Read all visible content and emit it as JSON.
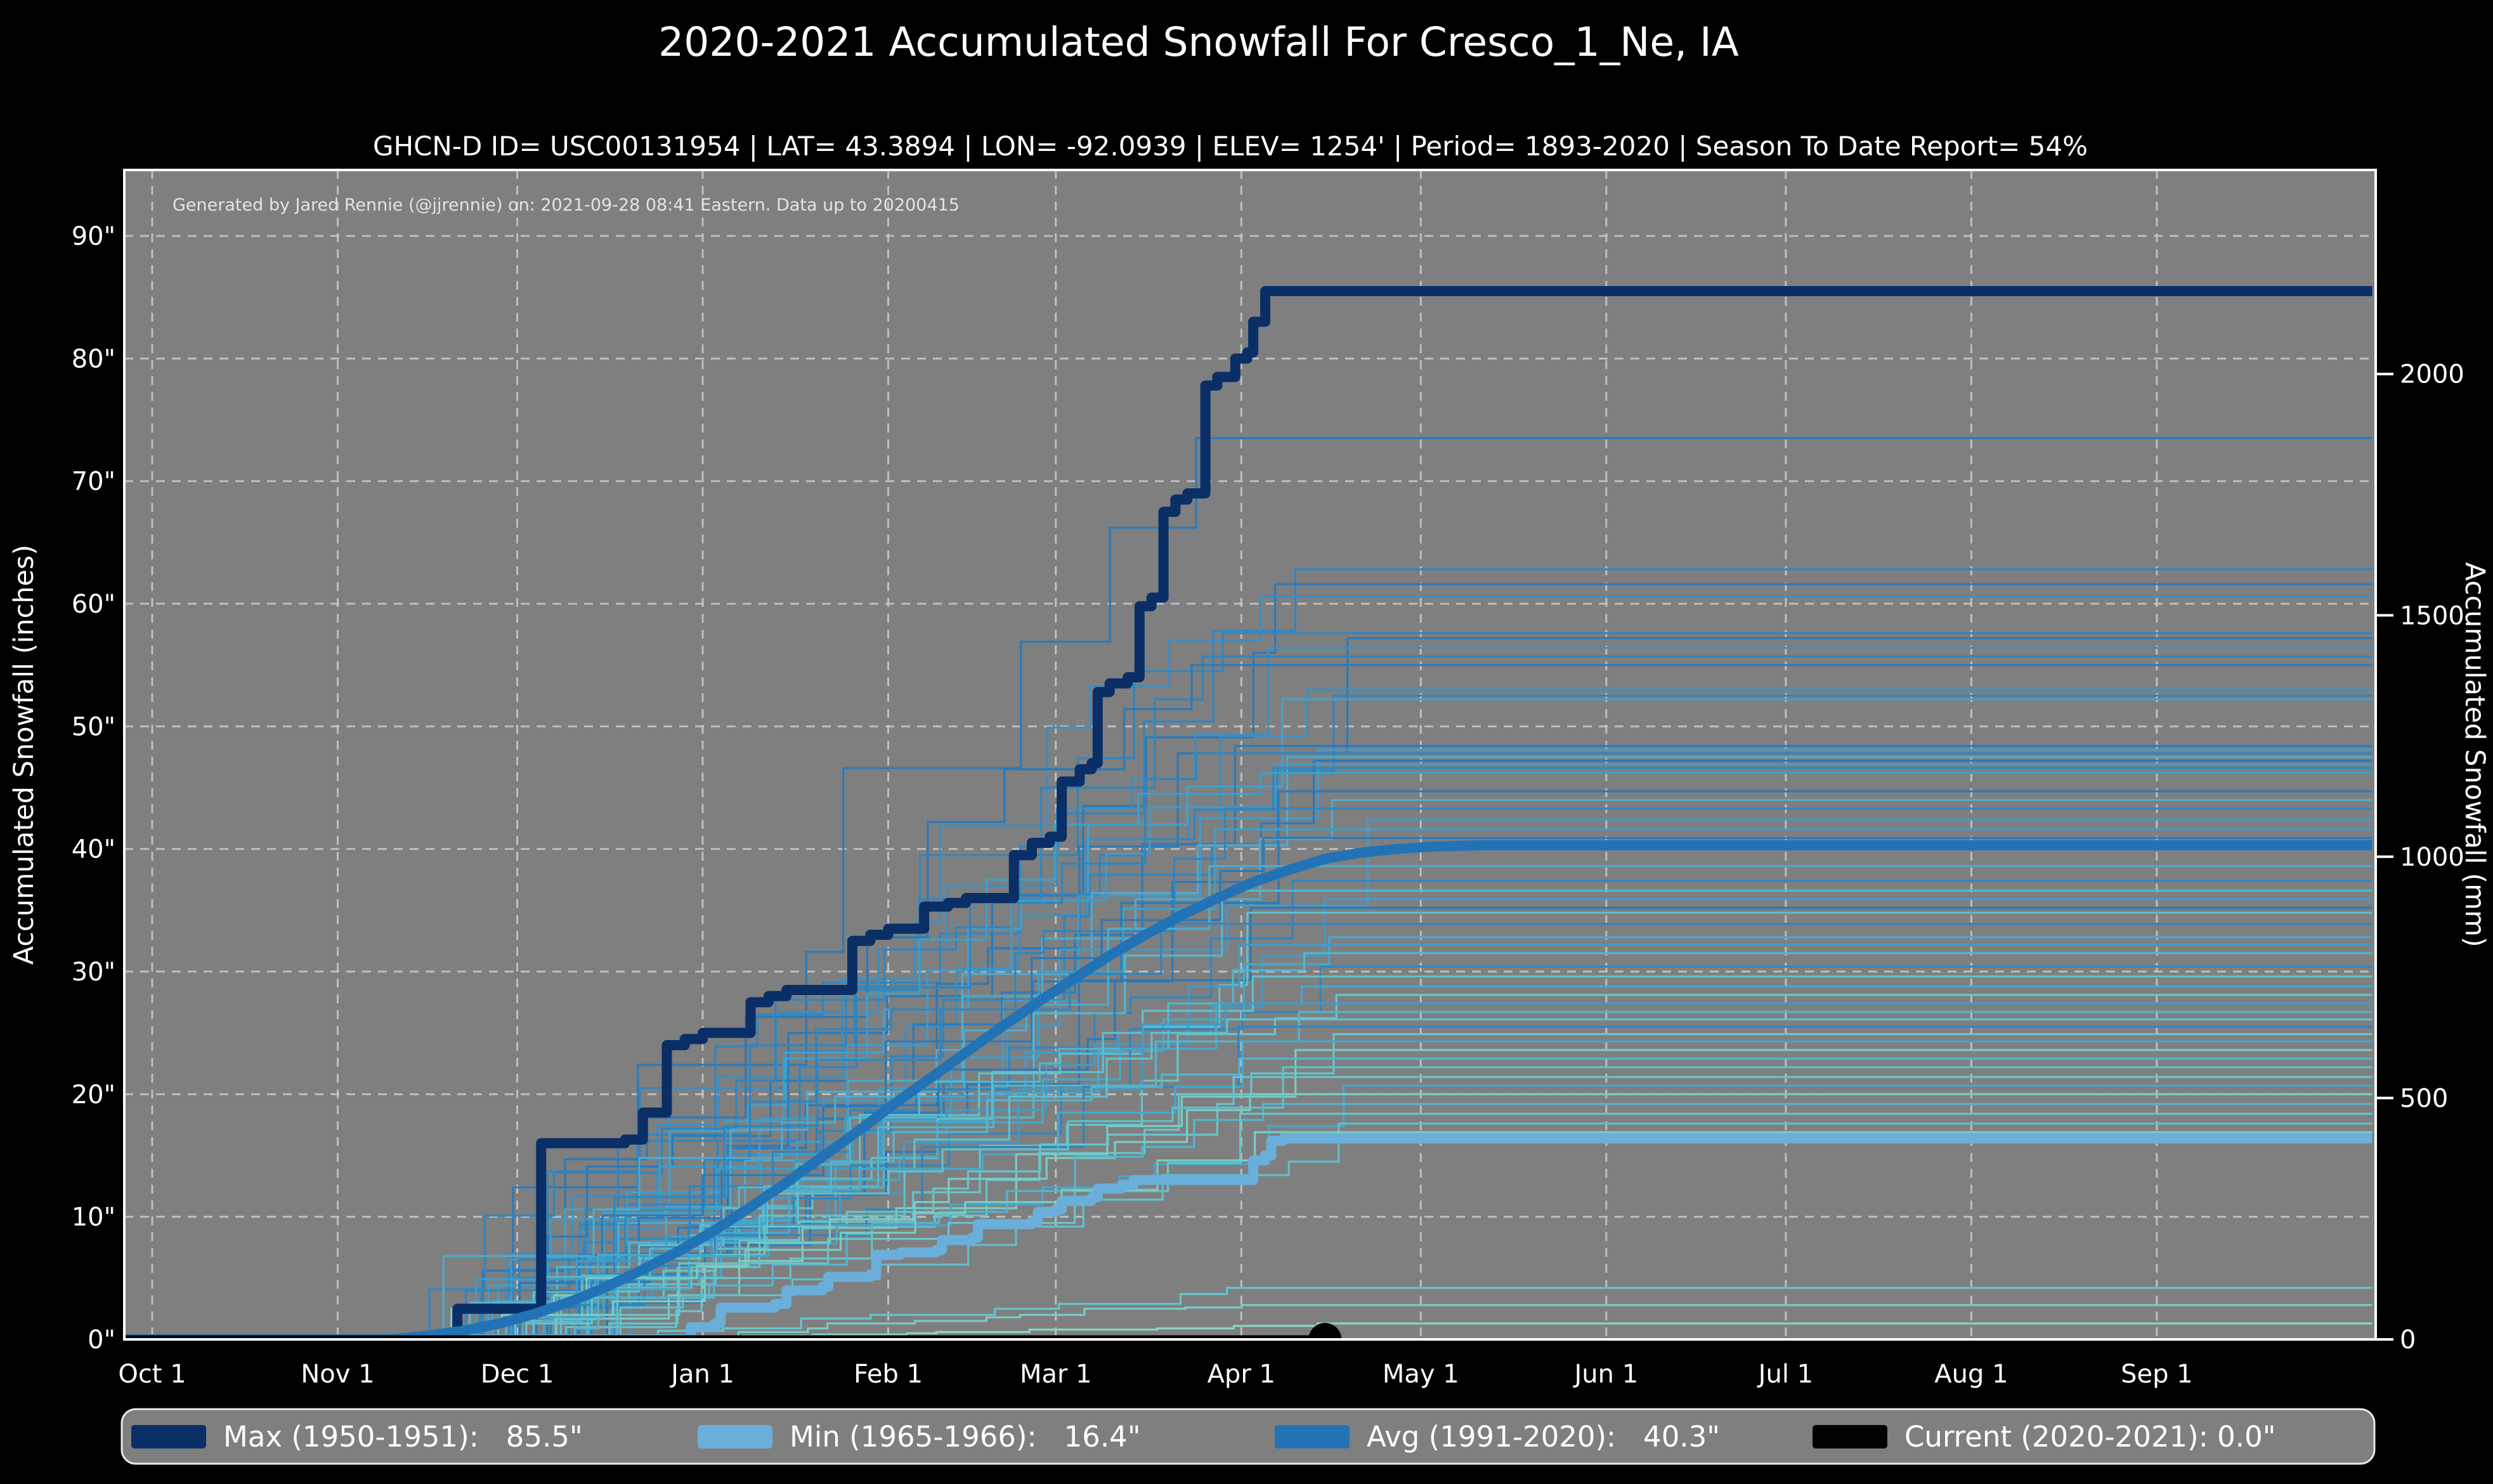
{
  "page": {
    "background": "#000000",
    "plot_background": "#7f7f7f",
    "text_color": "#ffffff"
  },
  "header": {
    "title": "2020-2021 Accumulated Snowfall For Cresco_1_Ne, IA",
    "subtitle": "GHCN-D ID= USC00131954 | LAT= 43.3894 | LON= -92.0939 | ELEV= 1254' | Period= 1893-2020 | Season To Date Report= 54%"
  },
  "annotation": "Generated by Jared Rennie (@jjrennie) on: 2021-09-28 08:41 Eastern. Data up to 20200415",
  "chart_data": {
    "type": "line",
    "title": "2020-2021 Accumulated Snowfall For Cresco_1_Ne, IA",
    "xlabel": "",
    "ylabel_left": "Accumulated Snowfall (inches)",
    "ylabel_right": "Accumulated Snowfall (mm)",
    "x_domain_days": [
      -5,
      371
    ],
    "y_left": {
      "ticks": [
        0,
        10,
        20,
        30,
        40,
        50,
        60,
        70,
        80,
        90
      ],
      "suffix": "\"",
      "max": 95
    },
    "y_right": {
      "ticks": [
        0,
        500,
        1000,
        1500,
        2000
      ],
      "mm_per_inch": 25.4
    },
    "x_ticks": [
      {
        "label": "Oct 1",
        "day": 0
      },
      {
        "label": "Nov 1",
        "day": 31
      },
      {
        "label": "Dec 1",
        "day": 61
      },
      {
        "label": "Jan 1",
        "day": 92
      },
      {
        "label": "Feb 1",
        "day": 123
      },
      {
        "label": "Mar 1",
        "day": 151
      },
      {
        "label": "Apr 1",
        "day": 182
      },
      {
        "label": "May 1",
        "day": 212
      },
      {
        "label": "Jun 1",
        "day": 243
      },
      {
        "label": "Jul 1",
        "day": 273
      },
      {
        "label": "Aug 1",
        "day": 304
      },
      {
        "label": "Sep 1",
        "day": 335
      }
    ],
    "grid": {
      "color": "#c9c9c9",
      "dash": "14 11"
    },
    "series": [
      {
        "name": "Max (1950-1951):   85.5\"",
        "color": "#0a2f66",
        "width": 16,
        "step": true,
        "points": [
          [
            -5,
            0
          ],
          [
            50,
            0
          ],
          [
            51,
            2.5
          ],
          [
            64,
            2.5
          ],
          [
            65,
            16.0
          ],
          [
            79,
            16.3
          ],
          [
            82,
            18.5
          ],
          [
            86,
            24.0
          ],
          [
            89,
            24.5
          ],
          [
            92,
            25.0
          ],
          [
            100,
            27.5
          ],
          [
            103,
            28.0
          ],
          [
            106,
            28.5
          ],
          [
            117,
            32.5
          ],
          [
            120,
            33.0
          ],
          [
            123,
            33.5
          ],
          [
            129,
            35.3
          ],
          [
            133,
            35.6
          ],
          [
            136,
            36.0
          ],
          [
            144,
            39.5
          ],
          [
            147,
            40.5
          ],
          [
            150,
            41.0
          ],
          [
            152,
            45.5
          ],
          [
            155,
            46.5
          ],
          [
            157,
            47.0
          ],
          [
            158,
            52.8
          ],
          [
            160,
            53.5
          ],
          [
            163,
            54.0
          ],
          [
            165,
            59.8
          ],
          [
            167,
            60.5
          ],
          [
            169,
            67.5
          ],
          [
            171,
            68.5
          ],
          [
            173,
            69.0
          ],
          [
            176,
            77.8
          ],
          [
            178,
            78.5
          ],
          [
            181,
            80.0
          ],
          [
            183,
            80.5
          ],
          [
            184,
            83.0
          ],
          [
            186,
            85.5
          ],
          [
            371,
            85.5
          ]
        ]
      },
      {
        "name": "Min (1965-1966):   16.4\"",
        "color": "#6aaeda",
        "width": 16,
        "step": true,
        "points": [
          [
            -5,
            0
          ],
          [
            88,
            0
          ],
          [
            90,
            1.0
          ],
          [
            94,
            1.3
          ],
          [
            95,
            2.6
          ],
          [
            104,
            2.9
          ],
          [
            106,
            4.0
          ],
          [
            112,
            4.3
          ],
          [
            113,
            5.1
          ],
          [
            120,
            5.3
          ],
          [
            121,
            6.9
          ],
          [
            125,
            7.1
          ],
          [
            131,
            7.3
          ],
          [
            132,
            8.1
          ],
          [
            137,
            8.3
          ],
          [
            138,
            9.4
          ],
          [
            147,
            9.6
          ],
          [
            148,
            10.4
          ],
          [
            151,
            10.6
          ],
          [
            152,
            11.3
          ],
          [
            157,
            11.6
          ],
          [
            158,
            12.3
          ],
          [
            162,
            12.6
          ],
          [
            164,
            13.0
          ],
          [
            182,
            13.0
          ],
          [
            184,
            14.6
          ],
          [
            186,
            15.0
          ],
          [
            187,
            16.2
          ],
          [
            189,
            16.4
          ],
          [
            371,
            16.4
          ]
        ]
      },
      {
        "name": "Avg (1991-2020):   40.3\"",
        "color": "#2273b5",
        "width": 16,
        "step": false,
        "points": [
          [
            -5,
            0
          ],
          [
            40,
            0
          ],
          [
            46,
            0.3
          ],
          [
            52,
            0.7
          ],
          [
            58,
            1.3
          ],
          [
            64,
            2.1
          ],
          [
            70,
            3.1
          ],
          [
            76,
            4.3
          ],
          [
            82,
            5.7
          ],
          [
            88,
            7.2
          ],
          [
            94,
            8.9
          ],
          [
            100,
            10.8
          ],
          [
            106,
            12.8
          ],
          [
            112,
            14.9
          ],
          [
            118,
            17.0
          ],
          [
            124,
            19.2
          ],
          [
            130,
            21.3
          ],
          [
            136,
            23.4
          ],
          [
            142,
            25.5
          ],
          [
            148,
            27.5
          ],
          [
            154,
            29.4
          ],
          [
            160,
            31.3
          ],
          [
            166,
            33.0
          ],
          [
            172,
            34.6
          ],
          [
            178,
            36.0
          ],
          [
            184,
            37.3
          ],
          [
            190,
            38.3
          ],
          [
            196,
            39.2
          ],
          [
            202,
            39.7
          ],
          [
            208,
            40.0
          ],
          [
            214,
            40.2
          ],
          [
            222,
            40.3
          ],
          [
            371,
            40.3
          ]
        ]
      },
      {
        "name": "Current (2020-2021): 0.0\"",
        "color": "#000000",
        "width": 13,
        "step": false,
        "points": [
          [
            -5,
            0
          ],
          [
            196,
            0
          ]
        ],
        "end_marker": {
          "day": 196,
          "value": 0,
          "radius": 26
        }
      }
    ],
    "legend": {
      "items": [
        {
          "label": "Max (1950-1951):   85.5\"",
          "color": "#0a2f66"
        },
        {
          "label": "Min (1965-1966):   16.4\"",
          "color": "#6aaeda"
        },
        {
          "label": "Avg (1991-2020):   40.3\"",
          "color": "#2273b5"
        },
        {
          "label": "Current (2020-2021): 0.0\"",
          "color": "#000000"
        }
      ]
    },
    "background_series": [
      {
        "final": 73.5,
        "color": "#2b7ab9",
        "start": 58,
        "flat": 185,
        "seed": 1
      },
      {
        "final": 62.8,
        "color": "#2f86c0",
        "start": 50,
        "flat": 196,
        "seed": 2
      },
      {
        "final": 61.6,
        "color": "#2b7ab9",
        "start": 62,
        "flat": 200,
        "seed": 3
      },
      {
        "final": 60.6,
        "color": "#3a8fc5",
        "start": 55,
        "flat": 192,
        "seed": 4
      },
      {
        "final": 57.6,
        "color": "#2f86c0",
        "start": 48,
        "flat": 188,
        "seed": 5
      },
      {
        "final": 57.2,
        "color": "#2b7ab9",
        "start": 66,
        "flat": 203,
        "seed": 6
      },
      {
        "final": 56.4,
        "color": "#3a8fc5",
        "start": 52,
        "flat": 197,
        "seed": 7
      },
      {
        "final": 55.7,
        "color": "#2f86c0",
        "start": 60,
        "flat": 190,
        "seed": 8
      },
      {
        "final": 55.0,
        "color": "#2b7ab9",
        "start": 45,
        "flat": 186,
        "seed": 9
      },
      {
        "final": 53.0,
        "color": "#3a8fc5",
        "start": 57,
        "flat": 199,
        "seed": 10
      },
      {
        "final": 52.5,
        "color": "#2f86c0",
        "start": 63,
        "flat": 207,
        "seed": 11
      },
      {
        "final": 52.2,
        "color": "#45a0ca",
        "start": 49,
        "flat": 193,
        "seed": 12
      },
      {
        "final": 48.4,
        "color": "#2b7ab9",
        "start": 54,
        "flat": 189,
        "seed": 13
      },
      {
        "final": 48.1,
        "color": "#419bc9",
        "start": 68,
        "flat": 202,
        "seed": 14
      },
      {
        "final": 47.8,
        "color": "#2f86c0",
        "start": 42,
        "flat": 184,
        "seed": 15
      },
      {
        "final": 47.5,
        "color": "#4dabce",
        "start": 59,
        "flat": 195,
        "seed": 16
      },
      {
        "final": 47.2,
        "color": "#2b7ab9",
        "start": 65,
        "flat": 205,
        "seed": 17
      },
      {
        "final": 46.9,
        "color": "#419bc9",
        "start": 51,
        "flat": 191,
        "seed": 18
      },
      {
        "final": 46.6,
        "color": "#2f86c0",
        "start": 61,
        "flat": 198,
        "seed": 19
      },
      {
        "final": 46.2,
        "color": "#38a2cb",
        "start": 47,
        "flat": 187,
        "seed": 20
      },
      {
        "final": 44.7,
        "color": "#2b7ab9",
        "start": 56,
        "flat": 194,
        "seed": 21
      },
      {
        "final": 44.0,
        "color": "#4dabce",
        "start": 64,
        "flat": 201,
        "seed": 22
      },
      {
        "final": 43.3,
        "color": "#2f86c0",
        "start": 44,
        "flat": 185,
        "seed": 23
      },
      {
        "final": 42.4,
        "color": "#419bc9",
        "start": 67,
        "flat": 206,
        "seed": 24
      },
      {
        "final": 41.6,
        "color": "#38a2cb",
        "start": 53,
        "flat": 190,
        "seed": 25
      },
      {
        "final": 40.9,
        "color": "#2b7ab9",
        "start": 58,
        "flat": 196,
        "seed": 26
      },
      {
        "final": 38.6,
        "color": "#4dabce",
        "start": 46,
        "flat": 183,
        "seed": 27
      },
      {
        "final": 37.4,
        "color": "#2f86c0",
        "start": 62,
        "flat": 199,
        "seed": 28
      },
      {
        "final": 36.6,
        "color": "#52b6cf",
        "start": 50,
        "flat": 192,
        "seed": 29
      },
      {
        "final": 35.9,
        "color": "#419bc9",
        "start": 69,
        "flat": 204,
        "seed": 30
      },
      {
        "final": 35.2,
        "color": "#2b7ab9",
        "start": 55,
        "flat": 188,
        "seed": 31
      },
      {
        "final": 34.8,
        "color": "#5fc0cd",
        "start": 60,
        "flat": 195,
        "seed": 32
      },
      {
        "final": 33.9,
        "color": "#2f86c0",
        "start": 43,
        "flat": 186,
        "seed": 33
      },
      {
        "final": 32.8,
        "color": "#45a8cd",
        "start": 66,
        "flat": 200,
        "seed": 34
      },
      {
        "final": 32.2,
        "color": "#419bc9",
        "start": 52,
        "flat": 191,
        "seed": 35
      },
      {
        "final": 31.5,
        "color": "#52b6cf",
        "start": 57,
        "flat": 197,
        "seed": 36
      },
      {
        "final": 30.4,
        "color": "#2f86c0",
        "start": 63,
        "flat": 203,
        "seed": 37
      },
      {
        "final": 29.6,
        "color": "#5fc0cd",
        "start": 48,
        "flat": 189,
        "seed": 38
      },
      {
        "final": 28.8,
        "color": "#45a8cd",
        "start": 59,
        "flat": 194,
        "seed": 39
      },
      {
        "final": 28.1,
        "color": "#66c4cc",
        "start": 65,
        "flat": 208,
        "seed": 40
      },
      {
        "final": 27.4,
        "color": "#419bc9",
        "start": 51,
        "flat": 185,
        "seed": 41
      },
      {
        "final": 26.7,
        "color": "#52b6cf",
        "start": 56,
        "flat": 198,
        "seed": 42
      },
      {
        "final": 26.1,
        "color": "#5fc0cd",
        "start": 61,
        "flat": 190,
        "seed": 43
      },
      {
        "final": 25.5,
        "color": "#2f86c0",
        "start": 45,
        "flat": 187,
        "seed": 44
      },
      {
        "final": 24.9,
        "color": "#66c4cc",
        "start": 67,
        "flat": 202,
        "seed": 45
      },
      {
        "final": 24.3,
        "color": "#45a8cd",
        "start": 54,
        "flat": 193,
        "seed": 46
      },
      {
        "final": 23.6,
        "color": "#79ccc4",
        "start": 58,
        "flat": 199,
        "seed": 47
      },
      {
        "final": 22.9,
        "color": "#52b6cf",
        "start": 49,
        "flat": 184,
        "seed": 48
      },
      {
        "final": 22.2,
        "color": "#5fc0cd",
        "start": 64,
        "flat": 196,
        "seed": 49
      },
      {
        "final": 21.4,
        "color": "#66c4cc",
        "start": 53,
        "flat": 191,
        "seed": 50
      },
      {
        "final": 20.7,
        "color": "#45a8cd",
        "start": 60,
        "flat": 205,
        "seed": 51
      },
      {
        "final": 20.0,
        "color": "#79ccc4",
        "start": 47,
        "flat": 188,
        "seed": 52
      },
      {
        "final": 19.2,
        "color": "#52b6cf",
        "start": 62,
        "flat": 195,
        "seed": 53
      },
      {
        "final": 18.4,
        "color": "#66c4cc",
        "start": 57,
        "flat": 200,
        "seed": 54
      },
      {
        "final": 17.6,
        "color": "#5fc0cd",
        "start": 68,
        "flat": 209,
        "seed": 55
      },
      {
        "final": 16.9,
        "color": "#79ccc4",
        "start": 44,
        "flat": 186,
        "seed": 56
      },
      {
        "final": 4.2,
        "color": "#66c4cc",
        "start": 75,
        "flat": 190,
        "seed": 57
      },
      {
        "final": 2.8,
        "color": "#79ccc4",
        "start": 80,
        "flat": 185,
        "seed": 58
      },
      {
        "final": 1.3,
        "color": "#8ad3c9",
        "start": 85,
        "flat": 197,
        "seed": 59
      }
    ]
  }
}
